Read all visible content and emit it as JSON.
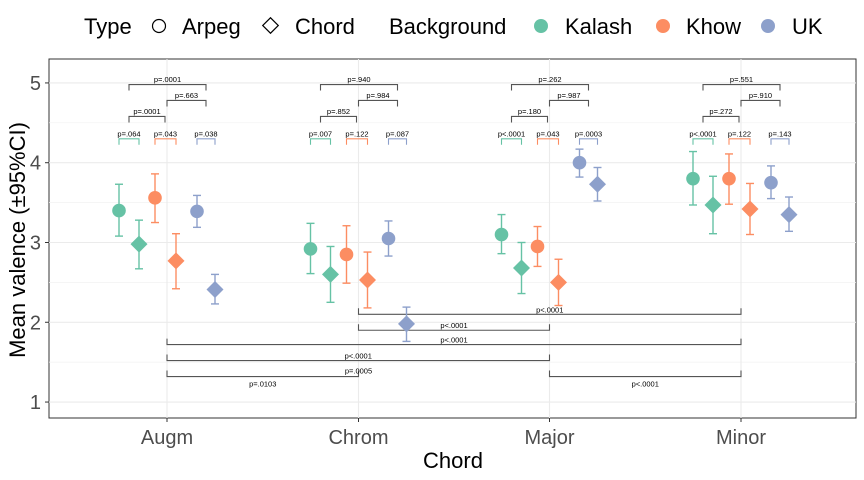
{
  "chart_data": {
    "type": "scatter",
    "xlabel": "Chord",
    "ylabel": "Mean valence (±95%CI)",
    "categories": [
      "Augm",
      "Chrom",
      "Major",
      "Minor"
    ],
    "ylim": [
      0.8,
      5.3
    ],
    "yticks": [
      1,
      2,
      3,
      4,
      5
    ],
    "grid": true,
    "legend_position": "top",
    "legend": {
      "type_title": "Type",
      "type_items": [
        {
          "label": "Arpeg",
          "shape": "circle"
        },
        {
          "label": "Chord",
          "shape": "diamond"
        }
      ],
      "background_title": "Background",
      "background_items": [
        {
          "label": "Kalash",
          "color": "#66c2a5"
        },
        {
          "label": "Khow",
          "color": "#fc8d62"
        },
        {
          "label": "UK",
          "color": "#8da0cb"
        }
      ]
    },
    "series": [
      {
        "name": "Kalash",
        "type": "Arpeg",
        "color": "#66c2a5",
        "shape": "circle",
        "points": [
          {
            "x": "Augm",
            "y": 3.4,
            "lo": 3.08,
            "hi": 3.73
          },
          {
            "x": "Chrom",
            "y": 2.92,
            "lo": 2.61,
            "hi": 3.24
          },
          {
            "x": "Major",
            "y": 3.1,
            "lo": 2.86,
            "hi": 3.35
          },
          {
            "x": "Minor",
            "y": 3.8,
            "lo": 3.47,
            "hi": 4.14
          }
        ]
      },
      {
        "name": "Kalash",
        "type": "Chord",
        "color": "#66c2a5",
        "shape": "diamond",
        "points": [
          {
            "x": "Augm",
            "y": 2.98,
            "lo": 2.67,
            "hi": 3.28
          },
          {
            "x": "Chrom",
            "y": 2.6,
            "lo": 2.25,
            "hi": 2.95
          },
          {
            "x": "Major",
            "y": 2.68,
            "lo": 2.36,
            "hi": 3.0
          },
          {
            "x": "Minor",
            "y": 3.47,
            "lo": 3.11,
            "hi": 3.83
          }
        ]
      },
      {
        "name": "Khow",
        "type": "Arpeg",
        "color": "#fc8d62",
        "shape": "circle",
        "points": [
          {
            "x": "Augm",
            "y": 3.56,
            "lo": 3.25,
            "hi": 3.86
          },
          {
            "x": "Chrom",
            "y": 2.85,
            "lo": 2.49,
            "hi": 3.21
          },
          {
            "x": "Major",
            "y": 2.95,
            "lo": 2.7,
            "hi": 3.2
          },
          {
            "x": "Minor",
            "y": 3.8,
            "lo": 3.48,
            "hi": 4.11
          }
        ]
      },
      {
        "name": "Khow",
        "type": "Chord",
        "color": "#fc8d62",
        "shape": "diamond",
        "points": [
          {
            "x": "Augm",
            "y": 2.77,
            "lo": 2.42,
            "hi": 3.11
          },
          {
            "x": "Chrom",
            "y": 2.53,
            "lo": 2.18,
            "hi": 2.88
          },
          {
            "x": "Major",
            "y": 2.5,
            "lo": 2.21,
            "hi": 2.79
          },
          {
            "x": "Minor",
            "y": 3.42,
            "lo": 3.1,
            "hi": 3.74
          }
        ]
      },
      {
        "name": "UK",
        "type": "Arpeg",
        "color": "#8da0cb",
        "shape": "circle",
        "points": [
          {
            "x": "Augm",
            "y": 3.39,
            "lo": 3.19,
            "hi": 3.59
          },
          {
            "x": "Chrom",
            "y": 3.05,
            "lo": 2.83,
            "hi": 3.27
          },
          {
            "x": "Major",
            "y": 4.0,
            "lo": 3.82,
            "hi": 4.17
          },
          {
            "x": "Minor",
            "y": 3.75,
            "lo": 3.55,
            "hi": 3.96
          }
        ]
      },
      {
        "name": "UK",
        "type": "Chord",
        "color": "#8da0cb",
        "shape": "diamond",
        "points": [
          {
            "x": "Augm",
            "y": 2.41,
            "lo": 2.23,
            "hi": 2.6
          },
          {
            "x": "Chrom",
            "y": 1.98,
            "lo": 1.76,
            "hi": 2.19
          },
          {
            "x": "Major",
            "y": 3.73,
            "lo": 3.52,
            "hi": 3.94
          },
          {
            "x": "Minor",
            "y": 3.35,
            "lo": 3.14,
            "hi": 3.57
          }
        ]
      }
    ],
    "annotations": {
      "within_chord": [
        {
          "chord": "Augm",
          "kalash": "p=.064",
          "khow": "p=.043",
          "uk": "p=.038",
          "kalash_khow": "p=.0001",
          "khow_uk": "p=.663",
          "kalash_uk": "p=.0001"
        },
        {
          "chord": "Chrom",
          "kalash": "p=.007",
          "khow": "p=.122",
          "uk": "p=.087",
          "kalash_khow": "p=.852",
          "khow_uk": "p=.984",
          "kalash_uk": "p=.940"
        },
        {
          "chord": "Major",
          "kalash": "p<.0001",
          "khow": "p=.043",
          "uk": "p=.0003",
          "kalash_khow": "p=.180",
          "khow_uk": "p=.987",
          "kalash_uk": "p=.262"
        },
        {
          "chord": "Minor",
          "kalash": "p<.0001",
          "khow": "p=.122",
          "uk": "p=.143",
          "kalash_khow": "p=.272",
          "khow_uk": "p=.910",
          "kalash_uk": "p=.551"
        }
      ],
      "between_chord": [
        {
          "from": "Chrom",
          "to": "Minor",
          "y": 2.1,
          "label": "p<.0001",
          "side": "below"
        },
        {
          "from": "Chrom",
          "to": "Major",
          "y": 1.9,
          "label": "p<.0001",
          "side": "below"
        },
        {
          "from": "Augm",
          "to": "Minor",
          "y": 1.72,
          "label": "p<.0001",
          "side": "below"
        },
        {
          "from": "Augm",
          "to": "Major",
          "y": 1.52,
          "label": "p<.0001",
          "side": "below"
        },
        {
          "from": "Augm",
          "to": "Chrom",
          "y": 1.32,
          "label": "p=.0103",
          "side": "above"
        },
        {
          "from": "Augm",
          "to": "Chrom",
          "y": 1.32,
          "label": "p=.0005",
          "side": "above-right"
        },
        {
          "from": "Major",
          "to": "Minor",
          "y": 1.32,
          "label": "p<.0001",
          "side": "above"
        }
      ]
    }
  }
}
